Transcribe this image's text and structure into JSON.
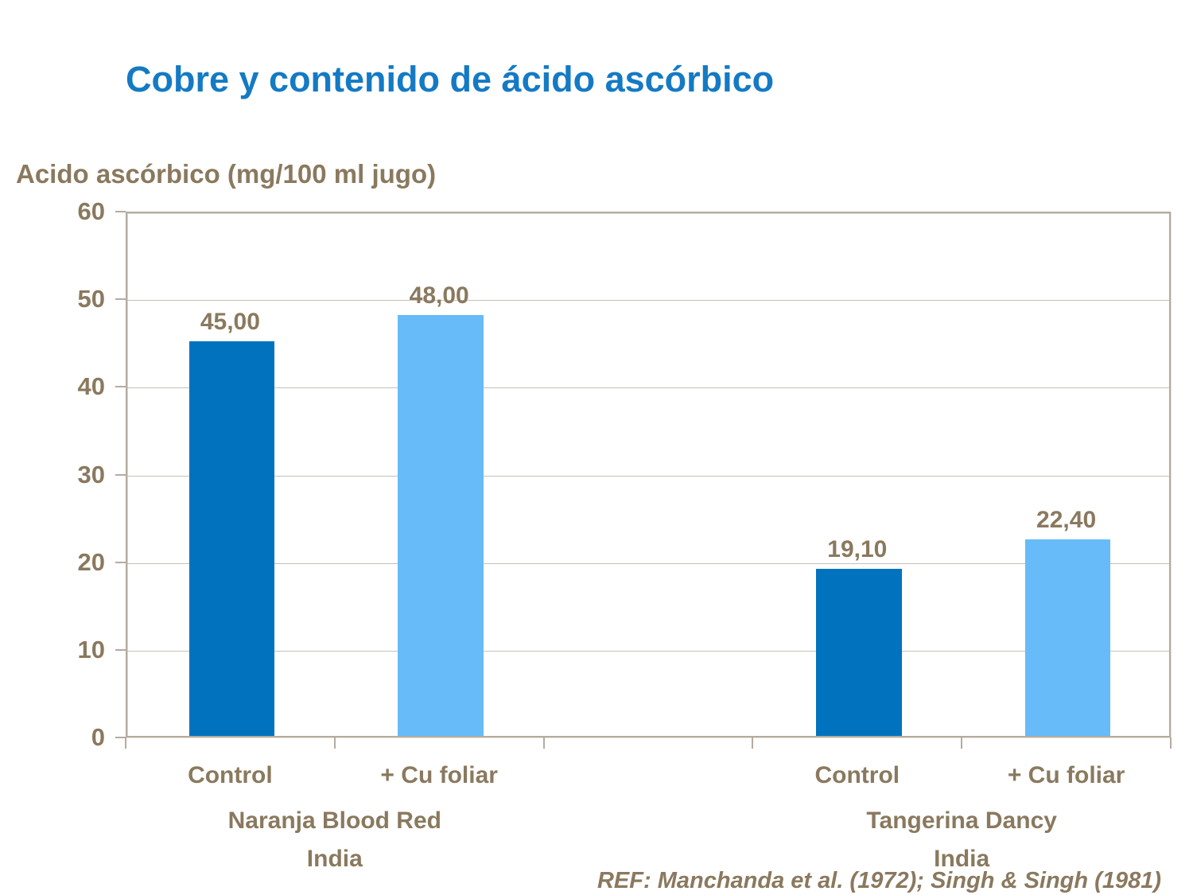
{
  "slide": {
    "title": "Cobre y contenido de ácido ascórbico",
    "reference": "REF: Manchanda et al. (1972); Singh & Singh (1981)"
  },
  "colors": {
    "title_blue": "#147AC4",
    "text_brown": "#8A795E",
    "bar_dark_blue": "#0173BE",
    "bar_light_blue": "#66BBF8",
    "axis_frame": "#B4ABA0",
    "gridline": "#C8C0B6",
    "background": "#FFFFFF"
  },
  "chart_data": {
    "type": "bar",
    "title": "Cobre y contenido de ácido ascórbico",
    "ylabel": "Acido ascórbico (mg/100 ml jugo)",
    "xlabel": "",
    "ylim": [
      0,
      60
    ],
    "yticks": [
      0,
      10,
      20,
      30,
      40,
      50,
      60
    ],
    "grid": true,
    "legend": "none",
    "decimal_format": "comma",
    "slots": 5,
    "bars": [
      {
        "slot": 0,
        "category": "Control",
        "value": 45.0,
        "value_label": "45,00",
        "color": "#0173BE",
        "group": "Naranja Blood Red India"
      },
      {
        "slot": 1,
        "category": "+ Cu foliar",
        "value": 48.0,
        "value_label": "48,00",
        "color": "#66BBF8",
        "group": "Naranja Blood Red India"
      },
      {
        "slot": 3,
        "category": "Control",
        "value": 19.1,
        "value_label": "19,10",
        "color": "#0173BE",
        "group": "Tangerina Dancy India"
      },
      {
        "slot": 4,
        "category": "+ Cu foliar",
        "value": 22.4,
        "value_label": "22,40",
        "color": "#66BBF8",
        "group": "Tangerina Dancy India"
      }
    ],
    "groups": [
      {
        "lines": [
          "Naranja Blood Red",
          "India"
        ],
        "slot_start": 0,
        "slot_end": 2
      },
      {
        "lines": [
          "Tangerina Dancy",
          "India"
        ],
        "slot_start": 3,
        "slot_end": 5
      }
    ]
  }
}
